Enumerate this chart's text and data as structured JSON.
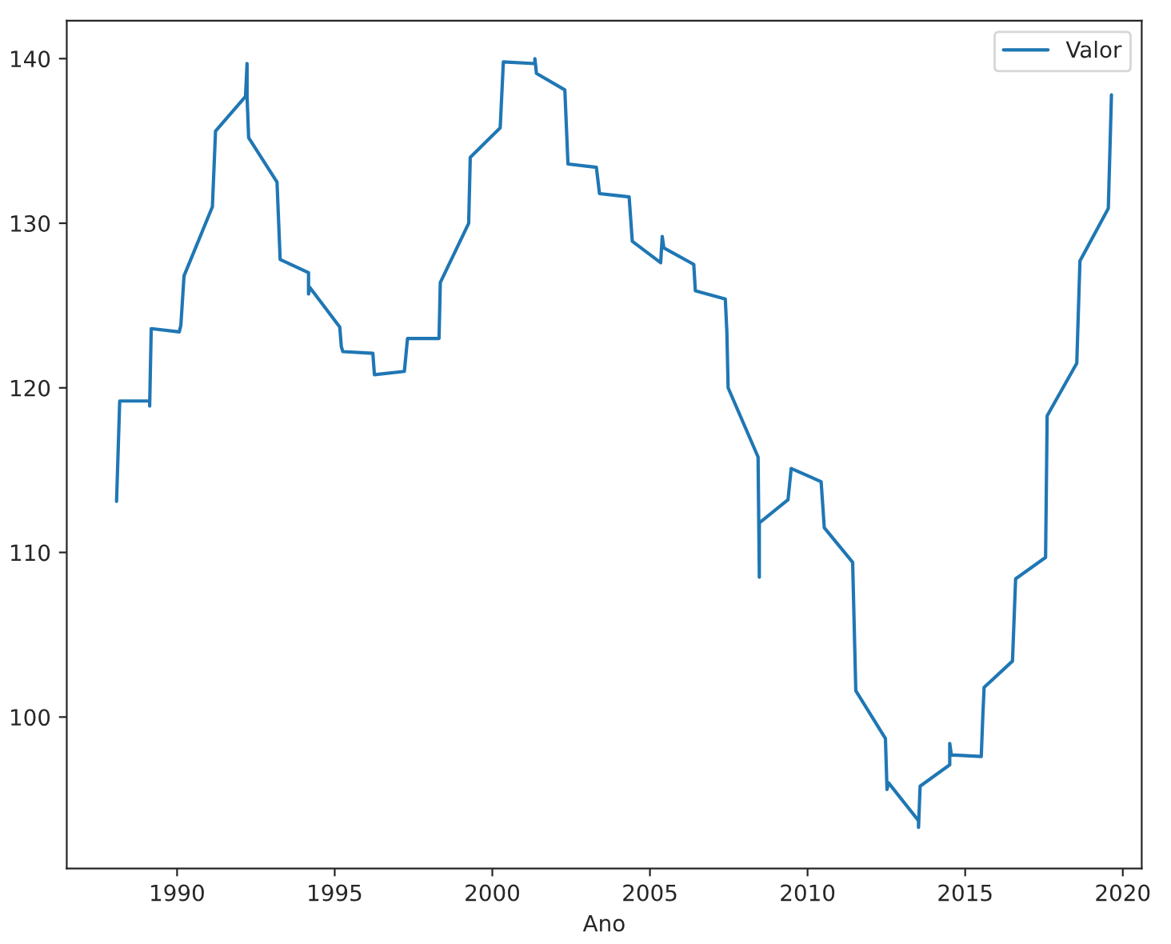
{
  "chart_data": {
    "type": "line",
    "xlabel": "Ano",
    "legend": "top right",
    "grid": false,
    "xlim": [
      1986.5,
      2020.6
    ],
    "ylim": [
      90.8,
      142.3
    ],
    "xticks": [
      1990,
      1995,
      2000,
      2005,
      2010,
      2015,
      2020
    ],
    "yticks": [
      100,
      110,
      120,
      130,
      140
    ],
    "series": [
      {
        "name": "Valor",
        "color": "#1f77b4",
        "x": [
          1988.08,
          1988.18,
          1989.13,
          1989.13,
          1989.18,
          1990.07,
          1990.12,
          1990.22,
          1991.12,
          1991.22,
          1992.17,
          1992.22,
          1992.22,
          1992.27,
          1993.17,
          1993.27,
          1994.17,
          1994.17,
          1994.21,
          1995.16,
          1995.21,
          1995.26,
          1996.21,
          1996.26,
          1997.21,
          1997.31,
          1998.31,
          1998.35,
          1999.25,
          1999.3,
          2000.25,
          2000.35,
          2001.35,
          2001.35,
          2001.4,
          2002.3,
          2002.4,
          2003.3,
          2003.4,
          2004.34,
          2004.44,
          2005.34,
          2005.39,
          2005.44,
          2006.39,
          2006.44,
          2007.39,
          2007.44,
          2007.48,
          2008.43,
          2008.47,
          2008.47,
          2009.38,
          2009.48,
          2010.43,
          2010.53,
          2011.43,
          2011.53,
          2012.47,
          2012.52,
          2012.57,
          2013.52,
          2013.52,
          2013.57,
          2014.51,
          2014.51,
          2014.56,
          2015.51,
          2015.56,
          2015.6,
          2016.5,
          2016.6,
          2017.55,
          2017.6,
          2018.54,
          2018.64,
          2019.54,
          2019.64
        ],
        "values": [
          113.1,
          119.2,
          119.2,
          118.9,
          123.6,
          123.4,
          123.8,
          126.8,
          131.0,
          135.6,
          137.7,
          139.7,
          137.7,
          135.2,
          132.5,
          127.8,
          127.0,
          125.7,
          126.1,
          123.7,
          122.5,
          122.2,
          122.1,
          120.8,
          121.0,
          123.0,
          123.0,
          126.4,
          130.0,
          134.0,
          135.8,
          139.8,
          139.7,
          140.0,
          139.1,
          138.1,
          133.6,
          133.4,
          131.8,
          131.6,
          128.9,
          127.6,
          129.2,
          128.5,
          127.5,
          125.9,
          125.4,
          123.4,
          120.0,
          115.8,
          108.5,
          111.8,
          113.2,
          115.1,
          114.3,
          111.5,
          109.4,
          101.6,
          98.7,
          95.6,
          96.0,
          93.7,
          93.3,
          95.8,
          97.1,
          98.4,
          97.7,
          97.6,
          100.1,
          101.8,
          103.4,
          108.4,
          109.7,
          118.3,
          121.5,
          127.7,
          130.9,
          137.8
        ]
      }
    ]
  }
}
